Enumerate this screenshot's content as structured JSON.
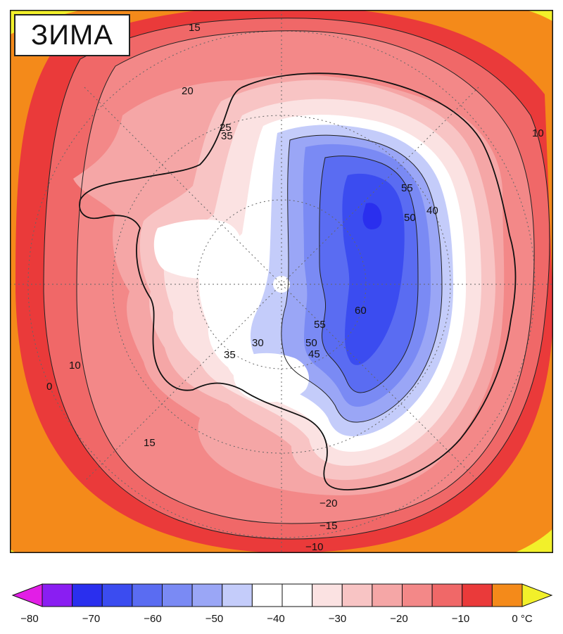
{
  "title": "ЗИМА",
  "colors": {
    "m80": "#e21ee6",
    "m75": "#8a1ef2",
    "m70": "#2a2fee",
    "m65": "#3b4cf0",
    "m60": "#5a6cf2",
    "m55": "#7a8af4",
    "m50": "#9aa6f6",
    "m45": "#c4ccfa",
    "m40": "#ffffff",
    "m35": "#fbe2e2",
    "m30": "#f8c4c4",
    "m25": "#f5a6a6",
    "m20": "#f38888",
    "m15": "#f06868",
    "m10": "#ea3a3a",
    "m5": "#f48a1a",
    "zero": "#f2f02a",
    "border": "#111111",
    "grid": "#666666"
  },
  "contour_labels": [
    {
      "text": "15"
    },
    {
      "text": "20"
    },
    {
      "text": "25"
    },
    {
      "text": "30"
    },
    {
      "text": "35"
    },
    {
      "text": "35"
    },
    {
      "text": "40"
    },
    {
      "text": "50"
    },
    {
      "text": "55"
    },
    {
      "text": "55"
    },
    {
      "text": "60"
    },
    {
      "text": "50"
    },
    {
      "text": "45"
    },
    {
      "text": "−20"
    },
    {
      "text": "−15"
    },
    {
      "text": "−10"
    },
    {
      "text": "10"
    },
    {
      "text": "15"
    },
    {
      "text": "10"
    },
    {
      "text": "0"
    }
  ],
  "legend": {
    "ticks": [
      "−80",
      "−70",
      "−60",
      "−50",
      "−40",
      "−30",
      "−20",
      "−10",
      "0 °C"
    ],
    "bins": [
      {
        "color": "#8a1ef2"
      },
      {
        "color": "#2a2fee"
      },
      {
        "color": "#3b4cf0"
      },
      {
        "color": "#5a6cf2"
      },
      {
        "color": "#7a8af4"
      },
      {
        "color": "#9aa6f6"
      },
      {
        "color": "#c4ccfa"
      },
      {
        "color": "#ffffff"
      },
      {
        "color": "#ffffff"
      },
      {
        "color": "#fbe2e2"
      },
      {
        "color": "#f8c4c4"
      },
      {
        "color": "#f5a6a6"
      },
      {
        "color": "#f38888"
      },
      {
        "color": "#f06868"
      },
      {
        "color": "#ea3a3a"
      },
      {
        "color": "#f48a1a"
      }
    ],
    "left_arrow_color": "#e21ee6",
    "right_arrow_color": "#f2f02a"
  }
}
